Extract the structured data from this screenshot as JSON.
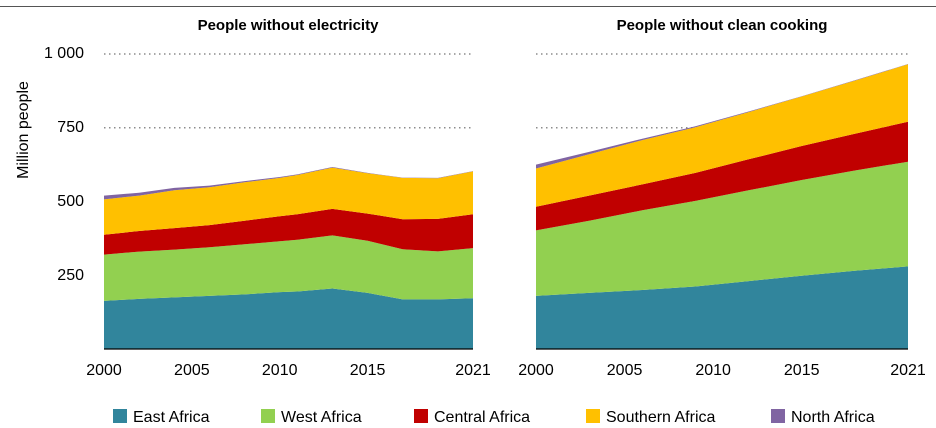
{
  "chart_data": {
    "type": "area",
    "stacked": true,
    "ylabel": "Million people",
    "ylim": [
      0,
      1000
    ],
    "yticks": [
      250,
      500,
      750,
      1000
    ],
    "ytick_labels": [
      "250",
      "500",
      "750",
      "1 000"
    ],
    "grid": "horizontal dotted",
    "legend_placement": "bottom",
    "series": [
      {
        "name": "East Africa",
        "color": "#31859c"
      },
      {
        "name": "West Africa",
        "color": "#92d050"
      },
      {
        "name": "Central Africa",
        "color": "#c00000"
      },
      {
        "name": "Southern Africa",
        "color": "#ffc000"
      },
      {
        "name": "North Africa",
        "color": "#8064a2"
      }
    ],
    "panels": [
      {
        "title": "People without electricity",
        "xlim": [
          2000,
          2021
        ],
        "xticks": [
          2000,
          2005,
          2010,
          2015,
          2021
        ],
        "x": [
          2000,
          2002,
          2004,
          2006,
          2008,
          2010,
          2011,
          2013,
          2015,
          2017,
          2019,
          2021
        ],
        "values": {
          "East Africa": [
            163,
            170,
            175,
            180,
            185,
            193,
            195,
            205,
            190,
            168,
            168,
            172
          ],
          "West Africa": [
            157,
            160,
            162,
            165,
            170,
            172,
            175,
            180,
            177,
            170,
            163,
            170
          ],
          "Central Africa": [
            67,
            70,
            73,
            75,
            80,
            85,
            87,
            90,
            92,
            102,
            110,
            115
          ],
          "Southern Africa": [
            120,
            120,
            128,
            128,
            130,
            130,
            133,
            140,
            137,
            140,
            138,
            145
          ],
          "North Africa": [
            13,
            10,
            8,
            6,
            4,
            3,
            2,
            2,
            1,
            1,
            1,
            1
          ]
        }
      },
      {
        "title": "People without clean cooking",
        "xlim": [
          2000,
          2021
        ],
        "xticks": [
          2000,
          2005,
          2010,
          2015,
          2021
        ],
        "x": [
          2000,
          2003,
          2006,
          2009,
          2012,
          2015,
          2018,
          2021
        ],
        "values": {
          "East Africa": [
            180,
            190,
            200,
            212,
            230,
            248,
            265,
            280
          ],
          "West Africa": [
            222,
            245,
            270,
            290,
            308,
            325,
            340,
            355
          ],
          "Central Africa": [
            80,
            85,
            88,
            95,
            105,
            115,
            125,
            135
          ],
          "Southern Africa": [
            130,
            140,
            150,
            155,
            160,
            168,
            180,
            195
          ],
          "North Africa": [
            13,
            8,
            5,
            3,
            2,
            1,
            1,
            1
          ]
        }
      }
    ]
  }
}
